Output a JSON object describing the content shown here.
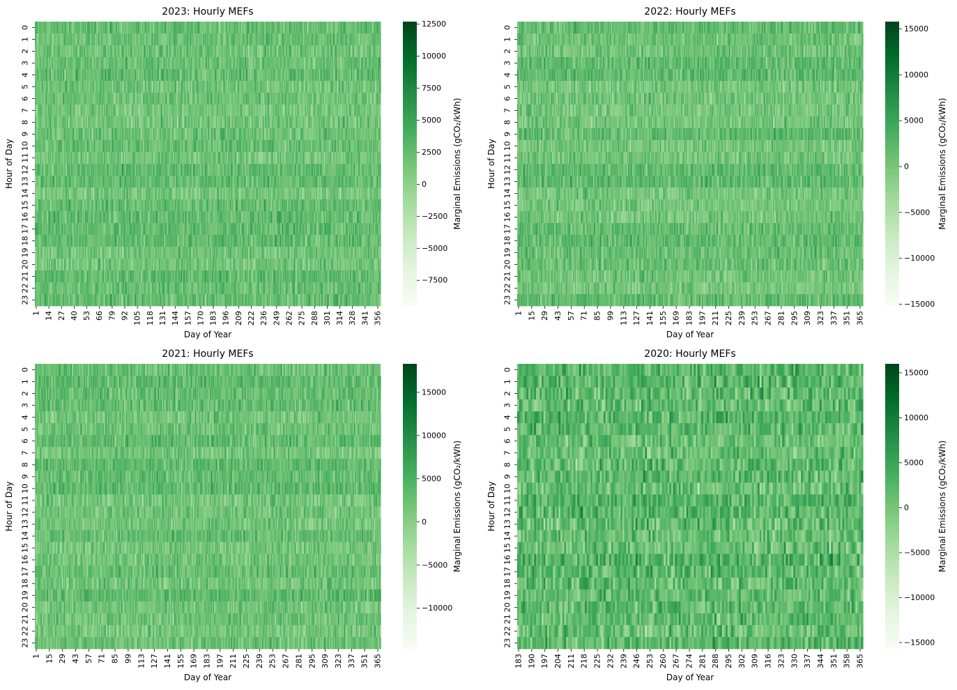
{
  "chart_data": [
    {
      "type": "heatmap",
      "title": "2023: Hourly MEFs",
      "xlabel": "Day of Year",
      "ylabel": "Hour of Day",
      "x_ticks": [
        "1",
        "14",
        "27",
        "40",
        "53",
        "66",
        "79",
        "92",
        "105",
        "118",
        "131",
        "144",
        "157",
        "170",
        "183",
        "196",
        "209",
        "222",
        "236",
        "249",
        "262",
        "275",
        "288",
        "301",
        "314",
        "328",
        "341",
        "356"
      ],
      "y_ticks": [
        "0",
        "1",
        "2",
        "3",
        "4",
        "5",
        "6",
        "7",
        "8",
        "9",
        "10",
        "11",
        "12",
        "13",
        "14",
        "15",
        "16",
        "17",
        "18",
        "19",
        "20",
        "21",
        "22",
        "23"
      ],
      "x_range": [
        1,
        365
      ],
      "colorbar": {
        "label": "Marginal Emissions (gCO₂/kWh)",
        "ticks": [
          "12500",
          "10000",
          "7500",
          "5000",
          "2500",
          "0",
          "−2500",
          "−5000",
          "−7500"
        ],
        "tick_values": [
          12500,
          10000,
          7500,
          5000,
          2500,
          0,
          -2500,
          -5000,
          -7500
        ],
        "range": [
          -9500,
          12700
        ],
        "colormap": "Greens",
        "low_color": "#f7fcf5",
        "high_color": "#00441b"
      }
    },
    {
      "type": "heatmap",
      "title": "2022: Hourly MEFs",
      "xlabel": "Day of Year",
      "ylabel": "Hour of Day",
      "x_ticks": [
        "1",
        "15",
        "29",
        "43",
        "57",
        "71",
        "85",
        "99",
        "113",
        "127",
        "141",
        "155",
        "169",
        "183",
        "197",
        "211",
        "225",
        "239",
        "253",
        "267",
        "281",
        "295",
        "309",
        "323",
        "337",
        "351",
        "365"
      ],
      "y_ticks": [
        "0",
        "1",
        "2",
        "3",
        "4",
        "5",
        "6",
        "7",
        "8",
        "9",
        "10",
        "11",
        "12",
        "13",
        "14",
        "15",
        "16",
        "17",
        "18",
        "19",
        "20",
        "21",
        "22",
        "23"
      ],
      "x_range": [
        1,
        365
      ],
      "colorbar": {
        "label": "Marginal Emissions (gCO₂/kWh)",
        "ticks": [
          "15000",
          "10000",
          "5000",
          "0",
          "−5000",
          "−10000",
          "−15000"
        ],
        "tick_values": [
          15000,
          10000,
          5000,
          0,
          -5000,
          -10000,
          -15000
        ],
        "range": [
          -15200,
          15800
        ],
        "colormap": "Greens",
        "low_color": "#f7fcf5",
        "high_color": "#00441b"
      }
    },
    {
      "type": "heatmap",
      "title": "2021: Hourly MEFs",
      "xlabel": "Day of Year",
      "ylabel": "Hour of Day",
      "x_ticks": [
        "1",
        "15",
        "29",
        "43",
        "57",
        "71",
        "85",
        "99",
        "113",
        "127",
        "141",
        "155",
        "169",
        "183",
        "197",
        "211",
        "225",
        "239",
        "253",
        "267",
        "281",
        "295",
        "309",
        "323",
        "337",
        "351",
        "365"
      ],
      "y_ticks": [
        "0",
        "1",
        "2",
        "3",
        "4",
        "5",
        "6",
        "7",
        "8",
        "9",
        "10",
        "11",
        "12",
        "13",
        "14",
        "15",
        "16",
        "17",
        "18",
        "19",
        "20",
        "21",
        "22",
        "23"
      ],
      "x_range": [
        1,
        365
      ],
      "colorbar": {
        "label": "Marginal Emissions (gCO₂/kWh)",
        "ticks": [
          "15000",
          "10000",
          "5000",
          "0",
          "−5000",
          "−10000"
        ],
        "tick_values": [
          15000,
          10000,
          5000,
          0,
          -5000,
          -10000
        ],
        "range": [
          -14700,
          18300
        ],
        "colormap": "Greens",
        "low_color": "#f7fcf5",
        "high_color": "#00441b"
      }
    },
    {
      "type": "heatmap",
      "title": "2020: Hourly MEFs",
      "xlabel": "Day of Year",
      "ylabel": "Hour of Day",
      "x_ticks": [
        "183",
        "190",
        "197",
        "204",
        "211",
        "218",
        "225",
        "232",
        "239",
        "246",
        "253",
        "260",
        "267",
        "274",
        "281",
        "288",
        "295",
        "302",
        "309",
        "316",
        "323",
        "330",
        "337",
        "344",
        "351",
        "358",
        "365"
      ],
      "y_ticks": [
        "0",
        "1",
        "2",
        "3",
        "4",
        "5",
        "6",
        "7",
        "8",
        "9",
        "10",
        "11",
        "12",
        "13",
        "14",
        "15",
        "16",
        "17",
        "18",
        "19",
        "20",
        "21",
        "22",
        "23"
      ],
      "x_range": [
        183,
        366
      ],
      "colorbar": {
        "label": "Marginal Emissions (gCO₂/kWh)",
        "ticks": [
          "15000",
          "10000",
          "5000",
          "0",
          "−5000",
          "−10000",
          "−15000"
        ],
        "tick_values": [
          15000,
          10000,
          5000,
          0,
          -5000,
          -10000,
          -15000
        ],
        "range": [
          -15700,
          16000
        ],
        "colormap": "Greens",
        "low_color": "#f7fcf5",
        "high_color": "#00441b"
      }
    }
  ]
}
